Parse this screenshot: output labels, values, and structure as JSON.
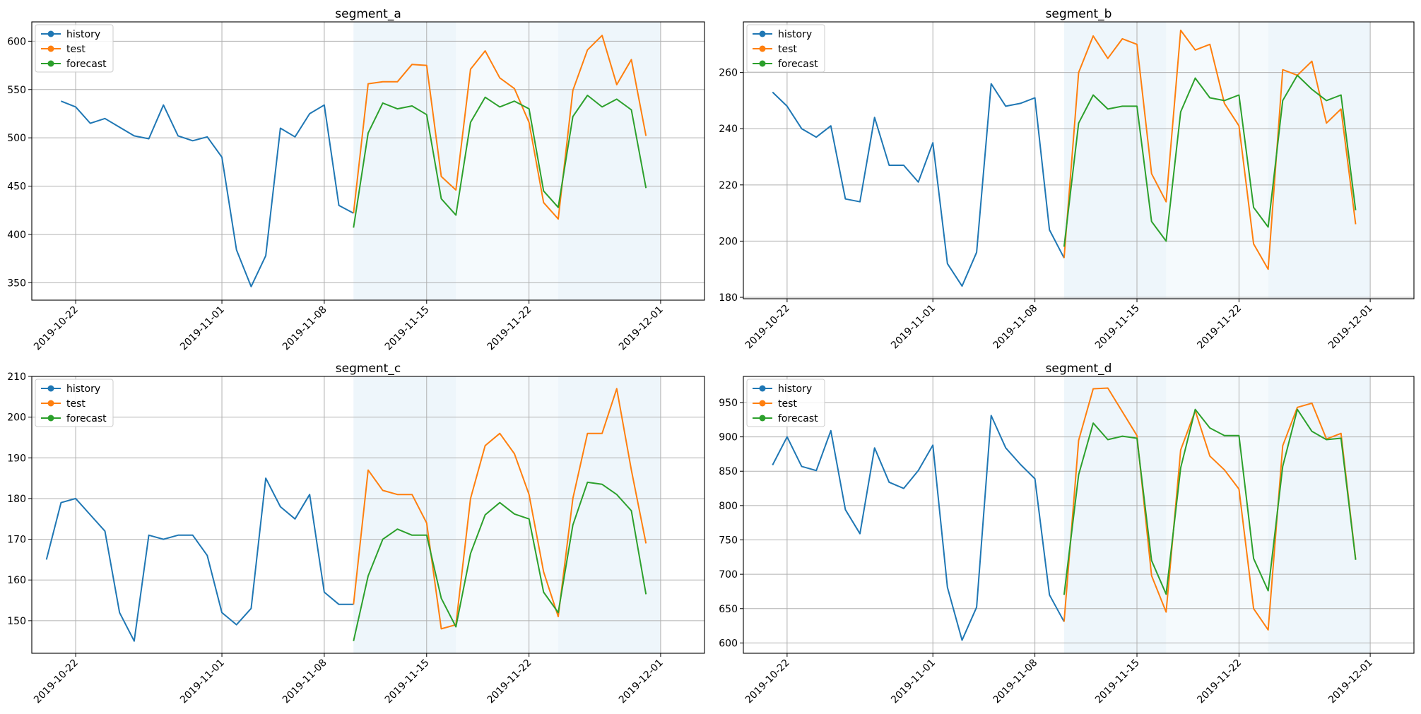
{
  "colors": {
    "history": "#1f77b4",
    "test": "#ff7f0e",
    "forecast": "#2ca02c",
    "grid": "#b0b0b0",
    "band": "#cfe4f3"
  },
  "chart_data": [
    {
      "type": "line",
      "title": "segment_a",
      "xlim": [
        "2019-10-19",
        "2019-12-04"
      ],
      "ylim": [
        332,
        620
      ],
      "xticks": [
        "2019-10-22",
        "2019-11-01",
        "2019-11-08",
        "2019-11-15",
        "2019-11-22",
        "2019-12-01"
      ],
      "yticks": [
        350,
        400,
        450,
        500,
        550,
        600
      ],
      "legend": {
        "position": "top-left",
        "entries": [
          "history",
          "test",
          "forecast"
        ]
      },
      "grid": true,
      "bands": [
        [
          "2019-11-10",
          "2019-11-17",
          0.35
        ],
        [
          "2019-11-17",
          "2019-11-24",
          0.2
        ],
        [
          "2019-11-24",
          "2019-12-01",
          0.35
        ]
      ],
      "series": [
        {
          "name": "history",
          "x": [
            "2019-10-21",
            "2019-10-22",
            "2019-10-23",
            "2019-10-24",
            "2019-10-25",
            "2019-10-26",
            "2019-10-27",
            "2019-10-28",
            "2019-10-29",
            "2019-10-30",
            "2019-10-31",
            "2019-11-01",
            "2019-11-02",
            "2019-11-03",
            "2019-11-04",
            "2019-11-05",
            "2019-11-06",
            "2019-11-07",
            "2019-11-08",
            "2019-11-09",
            "2019-11-10"
          ],
          "values": [
            538,
            532,
            515,
            520,
            511,
            502,
            499,
            534,
            502,
            497,
            501,
            480,
            384,
            346,
            378,
            510,
            501,
            525,
            534,
            430,
            422
          ]
        },
        {
          "name": "test",
          "x": [
            "2019-11-10",
            "2019-11-11",
            "2019-11-12",
            "2019-11-13",
            "2019-11-14",
            "2019-11-15",
            "2019-11-16",
            "2019-11-17",
            "2019-11-18",
            "2019-11-19",
            "2019-11-20",
            "2019-11-21",
            "2019-11-22",
            "2019-11-23",
            "2019-11-24",
            "2019-11-25",
            "2019-11-26",
            "2019-11-27",
            "2019-11-28",
            "2019-11-29",
            "2019-11-30"
          ],
          "values": [
            422,
            556,
            558,
            558,
            576,
            575,
            460,
            446,
            571,
            590,
            562,
            551,
            516,
            433,
            416,
            549,
            591,
            606,
            555,
            581,
            502
          ]
        },
        {
          "name": "forecast",
          "x": [
            "2019-11-10",
            "2019-11-11",
            "2019-11-12",
            "2019-11-13",
            "2019-11-14",
            "2019-11-15",
            "2019-11-16",
            "2019-11-17",
            "2019-11-18",
            "2019-11-19",
            "2019-11-20",
            "2019-11-21",
            "2019-11-22",
            "2019-11-23",
            "2019-11-24",
            "2019-11-25",
            "2019-11-26",
            "2019-11-27",
            "2019-11-28",
            "2019-11-29",
            "2019-11-30"
          ],
          "values": [
            407,
            505,
            536,
            530,
            533,
            524,
            437,
            420,
            516,
            542,
            532,
            538,
            530,
            445,
            428,
            522,
            544,
            532,
            540,
            529,
            448
          ]
        }
      ]
    },
    {
      "type": "line",
      "title": "segment_b",
      "xlim": [
        "2019-10-19",
        "2019-12-04"
      ],
      "ylim": [
        179.5,
        278
      ],
      "xticks": [
        "2019-10-22",
        "2019-11-01",
        "2019-11-08",
        "2019-11-15",
        "2019-11-22",
        "2019-12-01"
      ],
      "yticks": [
        180,
        200,
        220,
        240,
        260
      ],
      "legend": {
        "position": "top-left",
        "entries": [
          "history",
          "test",
          "forecast"
        ]
      },
      "grid": true,
      "bands": [
        [
          "2019-11-10",
          "2019-11-17",
          0.35
        ],
        [
          "2019-11-17",
          "2019-11-24",
          0.2
        ],
        [
          "2019-11-24",
          "2019-12-01",
          0.35
        ]
      ],
      "series": [
        {
          "name": "history",
          "x": [
            "2019-10-21",
            "2019-10-22",
            "2019-10-23",
            "2019-10-24",
            "2019-10-25",
            "2019-10-26",
            "2019-10-27",
            "2019-10-28",
            "2019-10-29",
            "2019-10-30",
            "2019-10-31",
            "2019-11-01",
            "2019-11-02",
            "2019-11-03",
            "2019-11-04",
            "2019-11-05",
            "2019-11-06",
            "2019-11-07",
            "2019-11-08",
            "2019-11-09",
            "2019-11-10"
          ],
          "values": [
            253,
            248,
            240,
            237,
            241,
            215,
            214,
            244,
            227,
            227,
            221,
            235,
            192,
            184,
            196,
            256,
            248,
            249,
            251,
            204,
            194
          ]
        },
        {
          "name": "test",
          "x": [
            "2019-11-10",
            "2019-11-11",
            "2019-11-12",
            "2019-11-13",
            "2019-11-14",
            "2019-11-15",
            "2019-11-16",
            "2019-11-17",
            "2019-11-18",
            "2019-11-19",
            "2019-11-20",
            "2019-11-21",
            "2019-11-22",
            "2019-11-23",
            "2019-11-24",
            "2019-11-25",
            "2019-11-26",
            "2019-11-27",
            "2019-11-28",
            "2019-11-29",
            "2019-11-30"
          ],
          "values": [
            194,
            260,
            273,
            265,
            272,
            270,
            224,
            214,
            275,
            268,
            270,
            249,
            241,
            199,
            190,
            261,
            259,
            264,
            242,
            247,
            206
          ]
        },
        {
          "name": "forecast",
          "x": [
            "2019-11-10",
            "2019-11-11",
            "2019-11-12",
            "2019-11-13",
            "2019-11-14",
            "2019-11-15",
            "2019-11-16",
            "2019-11-17",
            "2019-11-18",
            "2019-11-19",
            "2019-11-20",
            "2019-11-21",
            "2019-11-22",
            "2019-11-23",
            "2019-11-24",
            "2019-11-25",
            "2019-11-26",
            "2019-11-27",
            "2019-11-28",
            "2019-11-29",
            "2019-11-30"
          ],
          "values": [
            198,
            242,
            252,
            247,
            248,
            248,
            207,
            200,
            246,
            258,
            251,
            250,
            252,
            212,
            205,
            250,
            259,
            254,
            250,
            252,
            211
          ]
        }
      ]
    },
    {
      "type": "line",
      "title": "segment_c",
      "xlim": [
        "2019-10-19",
        "2019-12-04"
      ],
      "ylim": [
        142,
        210
      ],
      "xticks": [
        "2019-10-22",
        "2019-11-01",
        "2019-11-08",
        "2019-11-15",
        "2019-11-22",
        "2019-12-01"
      ],
      "yticks": [
        150,
        160,
        170,
        180,
        190,
        200,
        210
      ],
      "legend": {
        "position": "top-left",
        "entries": [
          "history",
          "test",
          "forecast"
        ]
      },
      "grid": true,
      "bands": [
        [
          "2019-11-10",
          "2019-11-17",
          0.35
        ],
        [
          "2019-11-17",
          "2019-11-24",
          0.2
        ],
        [
          "2019-11-24",
          "2019-12-01",
          0.35
        ]
      ],
      "series": [
        {
          "name": "history",
          "x": [
            "2019-10-20",
            "2019-10-21",
            "2019-10-22",
            "2019-10-23",
            "2019-10-24",
            "2019-10-25",
            "2019-10-26",
            "2019-10-27",
            "2019-10-28",
            "2019-10-29",
            "2019-10-30",
            "2019-10-31",
            "2019-11-01",
            "2019-11-02",
            "2019-11-03",
            "2019-11-04",
            "2019-11-05",
            "2019-11-06",
            "2019-11-07",
            "2019-11-08",
            "2019-11-09",
            "2019-11-10"
          ],
          "values": [
            165,
            179,
            180,
            176,
            172,
            152,
            145,
            171,
            170,
            171,
            171,
            166,
            152,
            149,
            153,
            185,
            178,
            175,
            181,
            157,
            154,
            154
          ]
        },
        {
          "name": "test",
          "x": [
            "2019-11-10",
            "2019-11-11",
            "2019-11-12",
            "2019-11-13",
            "2019-11-14",
            "2019-11-15",
            "2019-11-16",
            "2019-11-17",
            "2019-11-18",
            "2019-11-19",
            "2019-11-20",
            "2019-11-21",
            "2019-11-22",
            "2019-11-23",
            "2019-11-24",
            "2019-11-25",
            "2019-11-26",
            "2019-11-27",
            "2019-11-28",
            "2019-11-29",
            "2019-11-30"
          ],
          "values": [
            154,
            187,
            182,
            181,
            181,
            174,
            148,
            149,
            180,
            193,
            196,
            191,
            181,
            162,
            151,
            180,
            196,
            196,
            207,
            187,
            169
          ]
        },
        {
          "name": "forecast",
          "x": [
            "2019-11-10",
            "2019-11-11",
            "2019-11-12",
            "2019-11-13",
            "2019-11-14",
            "2019-11-15",
            "2019-11-16",
            "2019-11-17",
            "2019-11-18",
            "2019-11-19",
            "2019-11-20",
            "2019-11-21",
            "2019-11-22",
            "2019-11-23",
            "2019-11-24",
            "2019-11-25",
            "2019-11-26",
            "2019-11-27",
            "2019-11-28",
            "2019-11-29",
            "2019-11-30"
          ],
          "values": [
            145,
            161,
            170,
            172.5,
            171,
            171,
            155.5,
            148.5,
            166.5,
            176,
            179,
            176.2,
            175,
            157,
            152,
            173.5,
            184,
            183.5,
            181,
            177,
            156.5
          ]
        }
      ]
    },
    {
      "type": "line",
      "title": "segment_d",
      "xlim": [
        "2019-10-19",
        "2019-12-04"
      ],
      "ylim": [
        585,
        988
      ],
      "xticks": [
        "2019-10-22",
        "2019-11-01",
        "2019-11-08",
        "2019-11-15",
        "2019-11-22",
        "2019-12-01"
      ],
      "yticks": [
        600,
        650,
        700,
        750,
        800,
        850,
        900,
        950
      ],
      "legend": {
        "position": "top-left",
        "entries": [
          "history",
          "test",
          "forecast"
        ]
      },
      "grid": true,
      "bands": [
        [
          "2019-11-10",
          "2019-11-17",
          0.35
        ],
        [
          "2019-11-17",
          "2019-11-24",
          0.2
        ],
        [
          "2019-11-24",
          "2019-12-01",
          0.35
        ]
      ],
      "series": [
        {
          "name": "history",
          "x": [
            "2019-10-21",
            "2019-10-22",
            "2019-10-23",
            "2019-10-24",
            "2019-10-25",
            "2019-10-26",
            "2019-10-27",
            "2019-10-28",
            "2019-10-29",
            "2019-10-30",
            "2019-10-31",
            "2019-11-01",
            "2019-11-02",
            "2019-11-03",
            "2019-11-04",
            "2019-11-05",
            "2019-11-06",
            "2019-11-07",
            "2019-11-08",
            "2019-11-09",
            "2019-11-10"
          ],
          "values": [
            859,
            900,
            857,
            851,
            909,
            794,
            759,
            884,
            834,
            825,
            851,
            888,
            681,
            604,
            652,
            931,
            884,
            860,
            839,
            670,
            631
          ]
        },
        {
          "name": "test",
          "x": [
            "2019-11-10",
            "2019-11-11",
            "2019-11-12",
            "2019-11-13",
            "2019-11-15",
            "2019-11-16",
            "2019-11-17",
            "2019-11-18",
            "2019-11-19",
            "2019-11-20",
            "2019-11-21",
            "2019-11-22",
            "2019-11-23",
            "2019-11-24",
            "2019-11-25",
            "2019-11-26",
            "2019-11-27",
            "2019-11-28",
            "2019-11-29",
            "2019-11-30"
          ],
          "values": [
            631,
            895,
            970,
            971,
            902,
            698,
            645,
            881,
            938,
            872,
            852,
            824,
            650,
            619,
            887,
            943,
            949,
            897,
            905,
            722
          ]
        },
        {
          "name": "forecast",
          "x": [
            "2019-11-10",
            "2019-11-11",
            "2019-11-12",
            "2019-11-13",
            "2019-11-14",
            "2019-11-15",
            "2019-11-16",
            "2019-11-17",
            "2019-11-18",
            "2019-11-19",
            "2019-11-20",
            "2019-11-21",
            "2019-11-22",
            "2019-11-23",
            "2019-11-24",
            "2019-11-25",
            "2019-11-26",
            "2019-11-27",
            "2019-11-28",
            "2019-11-29",
            "2019-11-30"
          ],
          "values": [
            670,
            845,
            920,
            896,
            901,
            898,
            720,
            671,
            855,
            940,
            913,
            902,
            902,
            723,
            676,
            857,
            940,
            908,
            896,
            898,
            721
          ]
        }
      ]
    }
  ]
}
